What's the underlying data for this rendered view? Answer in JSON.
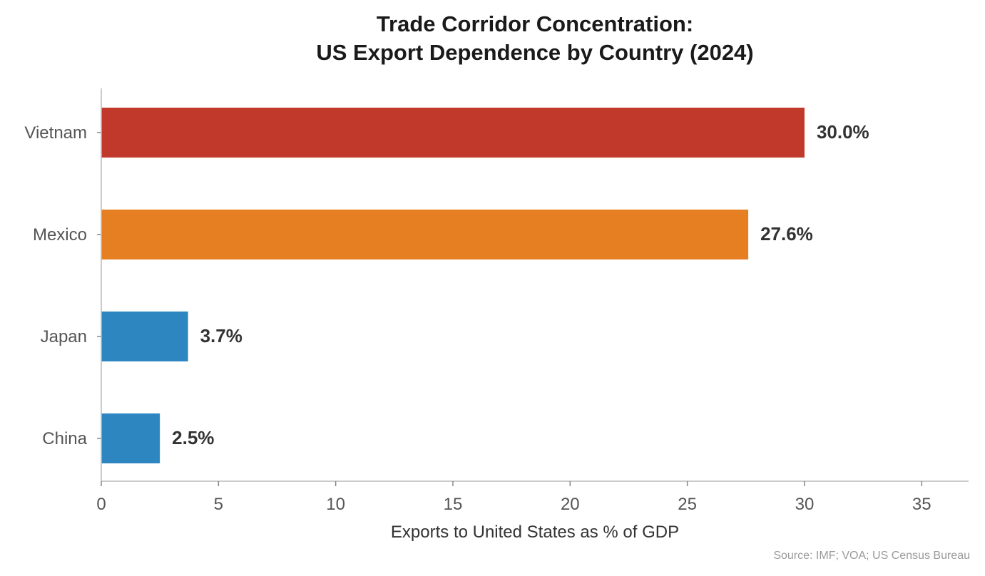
{
  "chart_data": {
    "type": "bar",
    "orientation": "horizontal",
    "title_lines": [
      "Trade Corridor Concentration:",
      "US Export Dependence by Country (2024)"
    ],
    "categories": [
      "Vietnam",
      "Mexico",
      "Japan",
      "China"
    ],
    "values": [
      30.0,
      27.6,
      3.7,
      2.5
    ],
    "value_labels": [
      "30.0%",
      "27.6%",
      "3.7%",
      "2.5%"
    ],
    "bar_colors": [
      "#c0392b",
      "#e67e22",
      "#2e86c1",
      "#2e86c1"
    ],
    "xlabel": "Exports to United States as % of GDP",
    "ylabel": "",
    "xlim": [
      0,
      37
    ],
    "xticks": [
      0,
      5,
      10,
      15,
      20,
      25,
      30,
      35
    ],
    "xtick_labels": [
      "0",
      "5",
      "10",
      "15",
      "20",
      "25",
      "30",
      "35"
    ],
    "grid": false,
    "legend": "none"
  },
  "source": "Source: IMF; VOA; US Census Bureau"
}
